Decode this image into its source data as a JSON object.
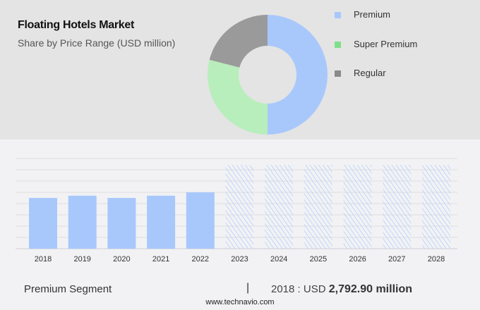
{
  "header": {
    "title": "Floating Hotels Market",
    "subtitle": "Share by Price Range (USD million)"
  },
  "chart_data": [
    {
      "type": "pie",
      "style": "donut",
      "title": "Floating Hotels Market",
      "subtitle": "Share by Price Range (USD million)",
      "legend_position": "right",
      "slices": [
        {
          "name": "Premium",
          "share": 50,
          "color": "#a8c8fc"
        },
        {
          "name": "Super Premium",
          "share": 29,
          "color": "#b8eebc"
        },
        {
          "name": "Regular",
          "share": 21,
          "color": "#9a9a9a"
        }
      ],
      "legend_colors": {
        "Premium": "#a8c8fc",
        "Super Premium": "#7ee08a",
        "Regular": "#8a8a8a"
      }
    },
    {
      "type": "bar",
      "categories": [
        "2018",
        "2019",
        "2020",
        "2021",
        "2022",
        "2023",
        "2024",
        "2025",
        "2026",
        "2027",
        "2028"
      ],
      "values": [
        2792.9,
        2917,
        2792.9,
        2917,
        3100,
        null,
        null,
        null,
        null,
        null,
        null
      ],
      "forecast_categories": [
        "2023",
        "2024",
        "2025",
        "2026",
        "2027",
        "2028"
      ],
      "grid": true,
      "ylim": [
        0,
        4960
      ],
      "bar_color": "#a8c8fc",
      "forecast_style": "hatched"
    }
  ],
  "footer": {
    "segment": "Premium Segment",
    "separator": "|",
    "value_prefix": "2018 : USD",
    "value": "2,792.90 million",
    "site": "www.technavio.com"
  }
}
